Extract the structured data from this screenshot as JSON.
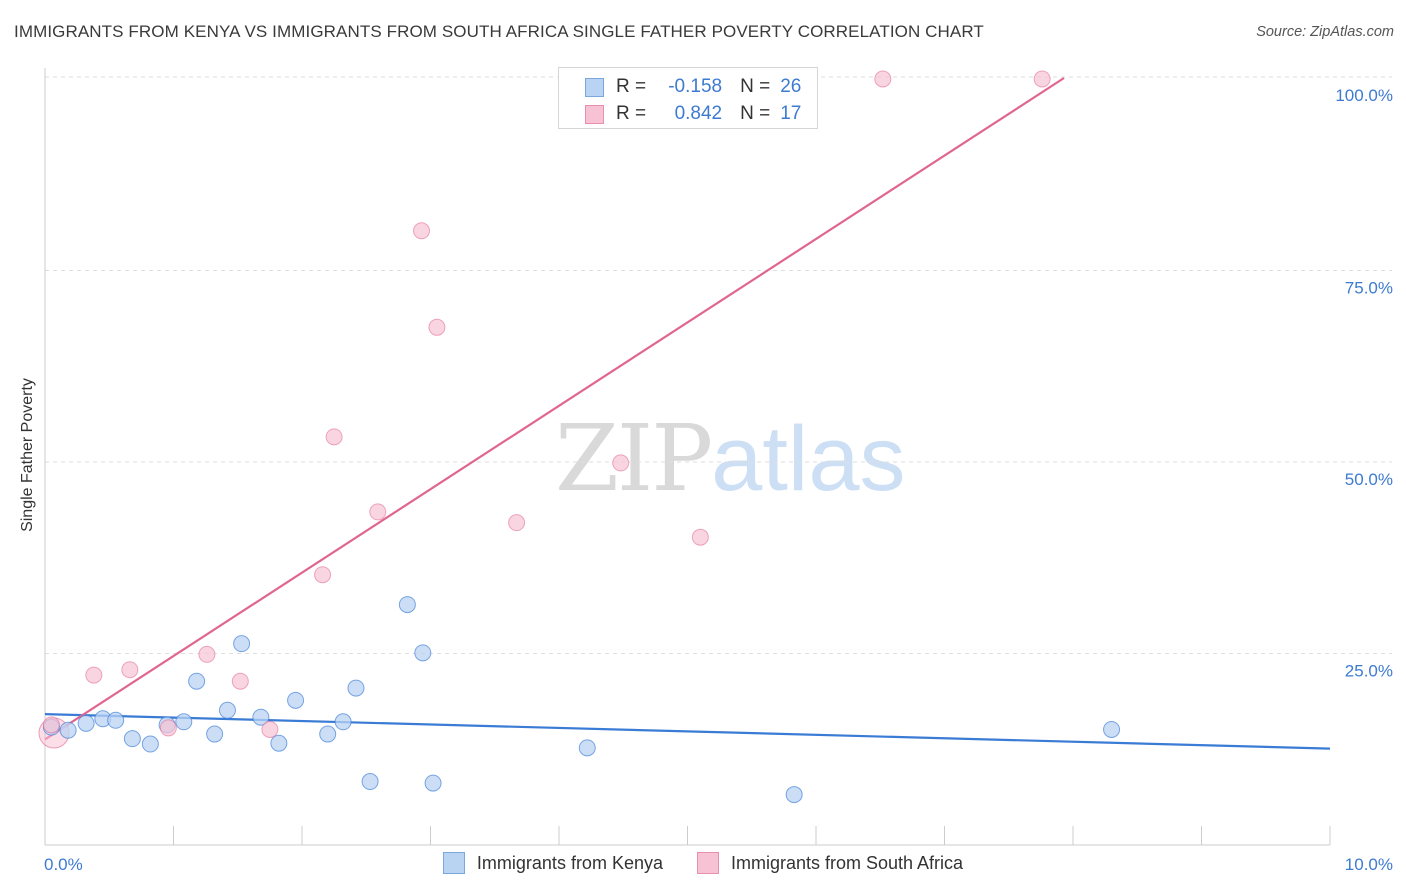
{
  "header": {
    "title": "IMMIGRANTS FROM KENYA VS IMMIGRANTS FROM SOUTH AFRICA SINGLE FATHER POVERTY CORRELATION CHART",
    "source": "Source: ZipAtlas.com"
  },
  "watermark": {
    "zip": "ZIP",
    "atlas": "atlas"
  },
  "legend": {
    "series1": {
      "r_label": "R =",
      "r_value": "-0.158",
      "n_label": "N =",
      "n_value": "26"
    },
    "series2": {
      "r_label": "R =",
      "r_value": "0.842",
      "n_label": "N =",
      "n_value": "17"
    }
  },
  "bottom_legend": {
    "series1": "Immigrants from Kenya",
    "series2": "Immigrants from South Africa"
  },
  "chart_data": {
    "type": "scatter",
    "ylabel": "Single Father Poverty",
    "xlabel": "",
    "xlim": [
      0,
      10
    ],
    "ylim": [
      0,
      100
    ],
    "x_tick_labels": [
      {
        "value": 0,
        "label": "0.0%"
      },
      {
        "value": 10,
        "label": "10.0%"
      }
    ],
    "y_tick_labels": [
      {
        "value": 25,
        "label": "25.0%"
      },
      {
        "value": 50,
        "label": "50.0%"
      },
      {
        "value": 75,
        "label": "75.0%"
      },
      {
        "value": 100,
        "label": "100.0%"
      }
    ],
    "colors": {
      "series1": "#3a7bd5",
      "series2": "#e0668f",
      "series1_fill": "#b9d3f3",
      "series2_fill": "#f7c3d4",
      "axis_label": "#3d7bd1"
    },
    "series": [
      {
        "name": "Immigrants from Kenya",
        "trendline": {
          "x": [
            0.0,
            10.0
          ],
          "y": [
            16.3,
            11.8
          ]
        },
        "points": [
          {
            "x": 0.05,
            "y": 14.6
          },
          {
            "x": 0.18,
            "y": 14.2
          },
          {
            "x": 0.32,
            "y": 15.1
          },
          {
            "x": 0.45,
            "y": 15.7
          },
          {
            "x": 0.55,
            "y": 15.5
          },
          {
            "x": 0.68,
            "y": 13.1
          },
          {
            "x": 0.82,
            "y": 12.4
          },
          {
            "x": 0.95,
            "y": 14.9
          },
          {
            "x": 1.08,
            "y": 15.3
          },
          {
            "x": 1.18,
            "y": 20.6
          },
          {
            "x": 1.32,
            "y": 13.7
          },
          {
            "x": 1.42,
            "y": 16.8
          },
          {
            "x": 1.53,
            "y": 25.5
          },
          {
            "x": 1.68,
            "y": 15.9
          },
          {
            "x": 1.82,
            "y": 12.5
          },
          {
            "x": 1.95,
            "y": 18.1
          },
          {
            "x": 2.2,
            "y": 13.7
          },
          {
            "x": 2.32,
            "y": 15.3
          },
          {
            "x": 2.42,
            "y": 19.7
          },
          {
            "x": 2.53,
            "y": 7.5
          },
          {
            "x": 2.82,
            "y": 30.6
          },
          {
            "x": 2.94,
            "y": 24.3
          },
          {
            "x": 3.02,
            "y": 7.3
          },
          {
            "x": 4.22,
            "y": 11.9
          },
          {
            "x": 5.83,
            "y": 5.8
          },
          {
            "x": 8.3,
            "y": 14.3
          }
        ]
      },
      {
        "name": "Immigrants from South Africa",
        "trendline": {
          "x": [
            0.0,
            7.93
          ],
          "y": [
            13.0,
            100.0
          ]
        },
        "points": [
          {
            "x": 0.05,
            "y": 14.9
          },
          {
            "x": 0.38,
            "y": 21.4
          },
          {
            "x": 0.66,
            "y": 22.1
          },
          {
            "x": 0.96,
            "y": 14.5
          },
          {
            "x": 1.26,
            "y": 24.1
          },
          {
            "x": 1.52,
            "y": 20.6
          },
          {
            "x": 1.75,
            "y": 14.3
          },
          {
            "x": 2.16,
            "y": 34.5
          },
          {
            "x": 2.25,
            "y": 52.5
          },
          {
            "x": 2.59,
            "y": 42.7
          },
          {
            "x": 2.93,
            "y": 79.4
          },
          {
            "x": 3.05,
            "y": 66.8
          },
          {
            "x": 3.67,
            "y": 41.3
          },
          {
            "x": 4.48,
            "y": 49.1
          },
          {
            "x": 5.1,
            "y": 39.4
          },
          {
            "x": 6.52,
            "y": 100.0
          },
          {
            "x": 7.76,
            "y": 100.0
          }
        ]
      }
    ]
  }
}
